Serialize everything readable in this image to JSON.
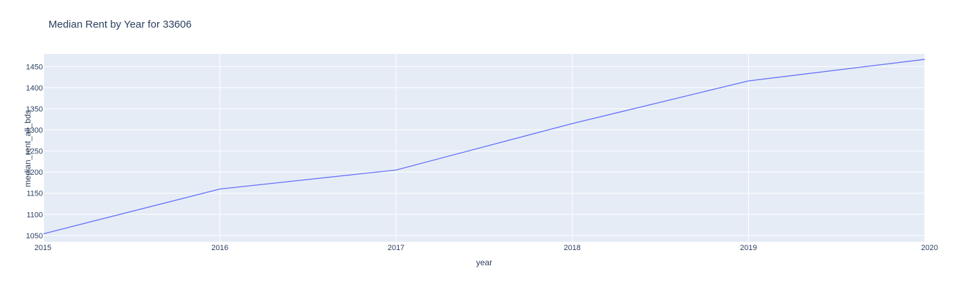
{
  "chart_data": {
    "type": "line",
    "title": "Median Rent by Year for 33606",
    "xlabel": "year",
    "ylabel": "median_rent_all_bds",
    "x": [
      2015,
      2016,
      2017,
      2018,
      2019,
      2020
    ],
    "xlim": [
      2015,
      2020
    ],
    "ylim": [
      1035,
      1480
    ],
    "yticks": [
      1050,
      1100,
      1150,
      1200,
      1250,
      1300,
      1350,
      1400,
      1450
    ],
    "ytick_labels": [
      "1050",
      "1100",
      "1150",
      "1200",
      "1250",
      "1300",
      "1350",
      "1400",
      "1450"
    ],
    "xtick_labels": [
      "2015",
      "2016",
      "2017",
      "2018",
      "2019",
      "2020"
    ],
    "series": [
      {
        "values": [
          1054,
          1160,
          1205,
          1315,
          1416,
          1467
        ]
      }
    ],
    "grid": true,
    "colors": {
      "background": "#e5ecf6",
      "grid": "#ffffff",
      "line": "#636efa",
      "text": "#2a3f5f"
    }
  }
}
